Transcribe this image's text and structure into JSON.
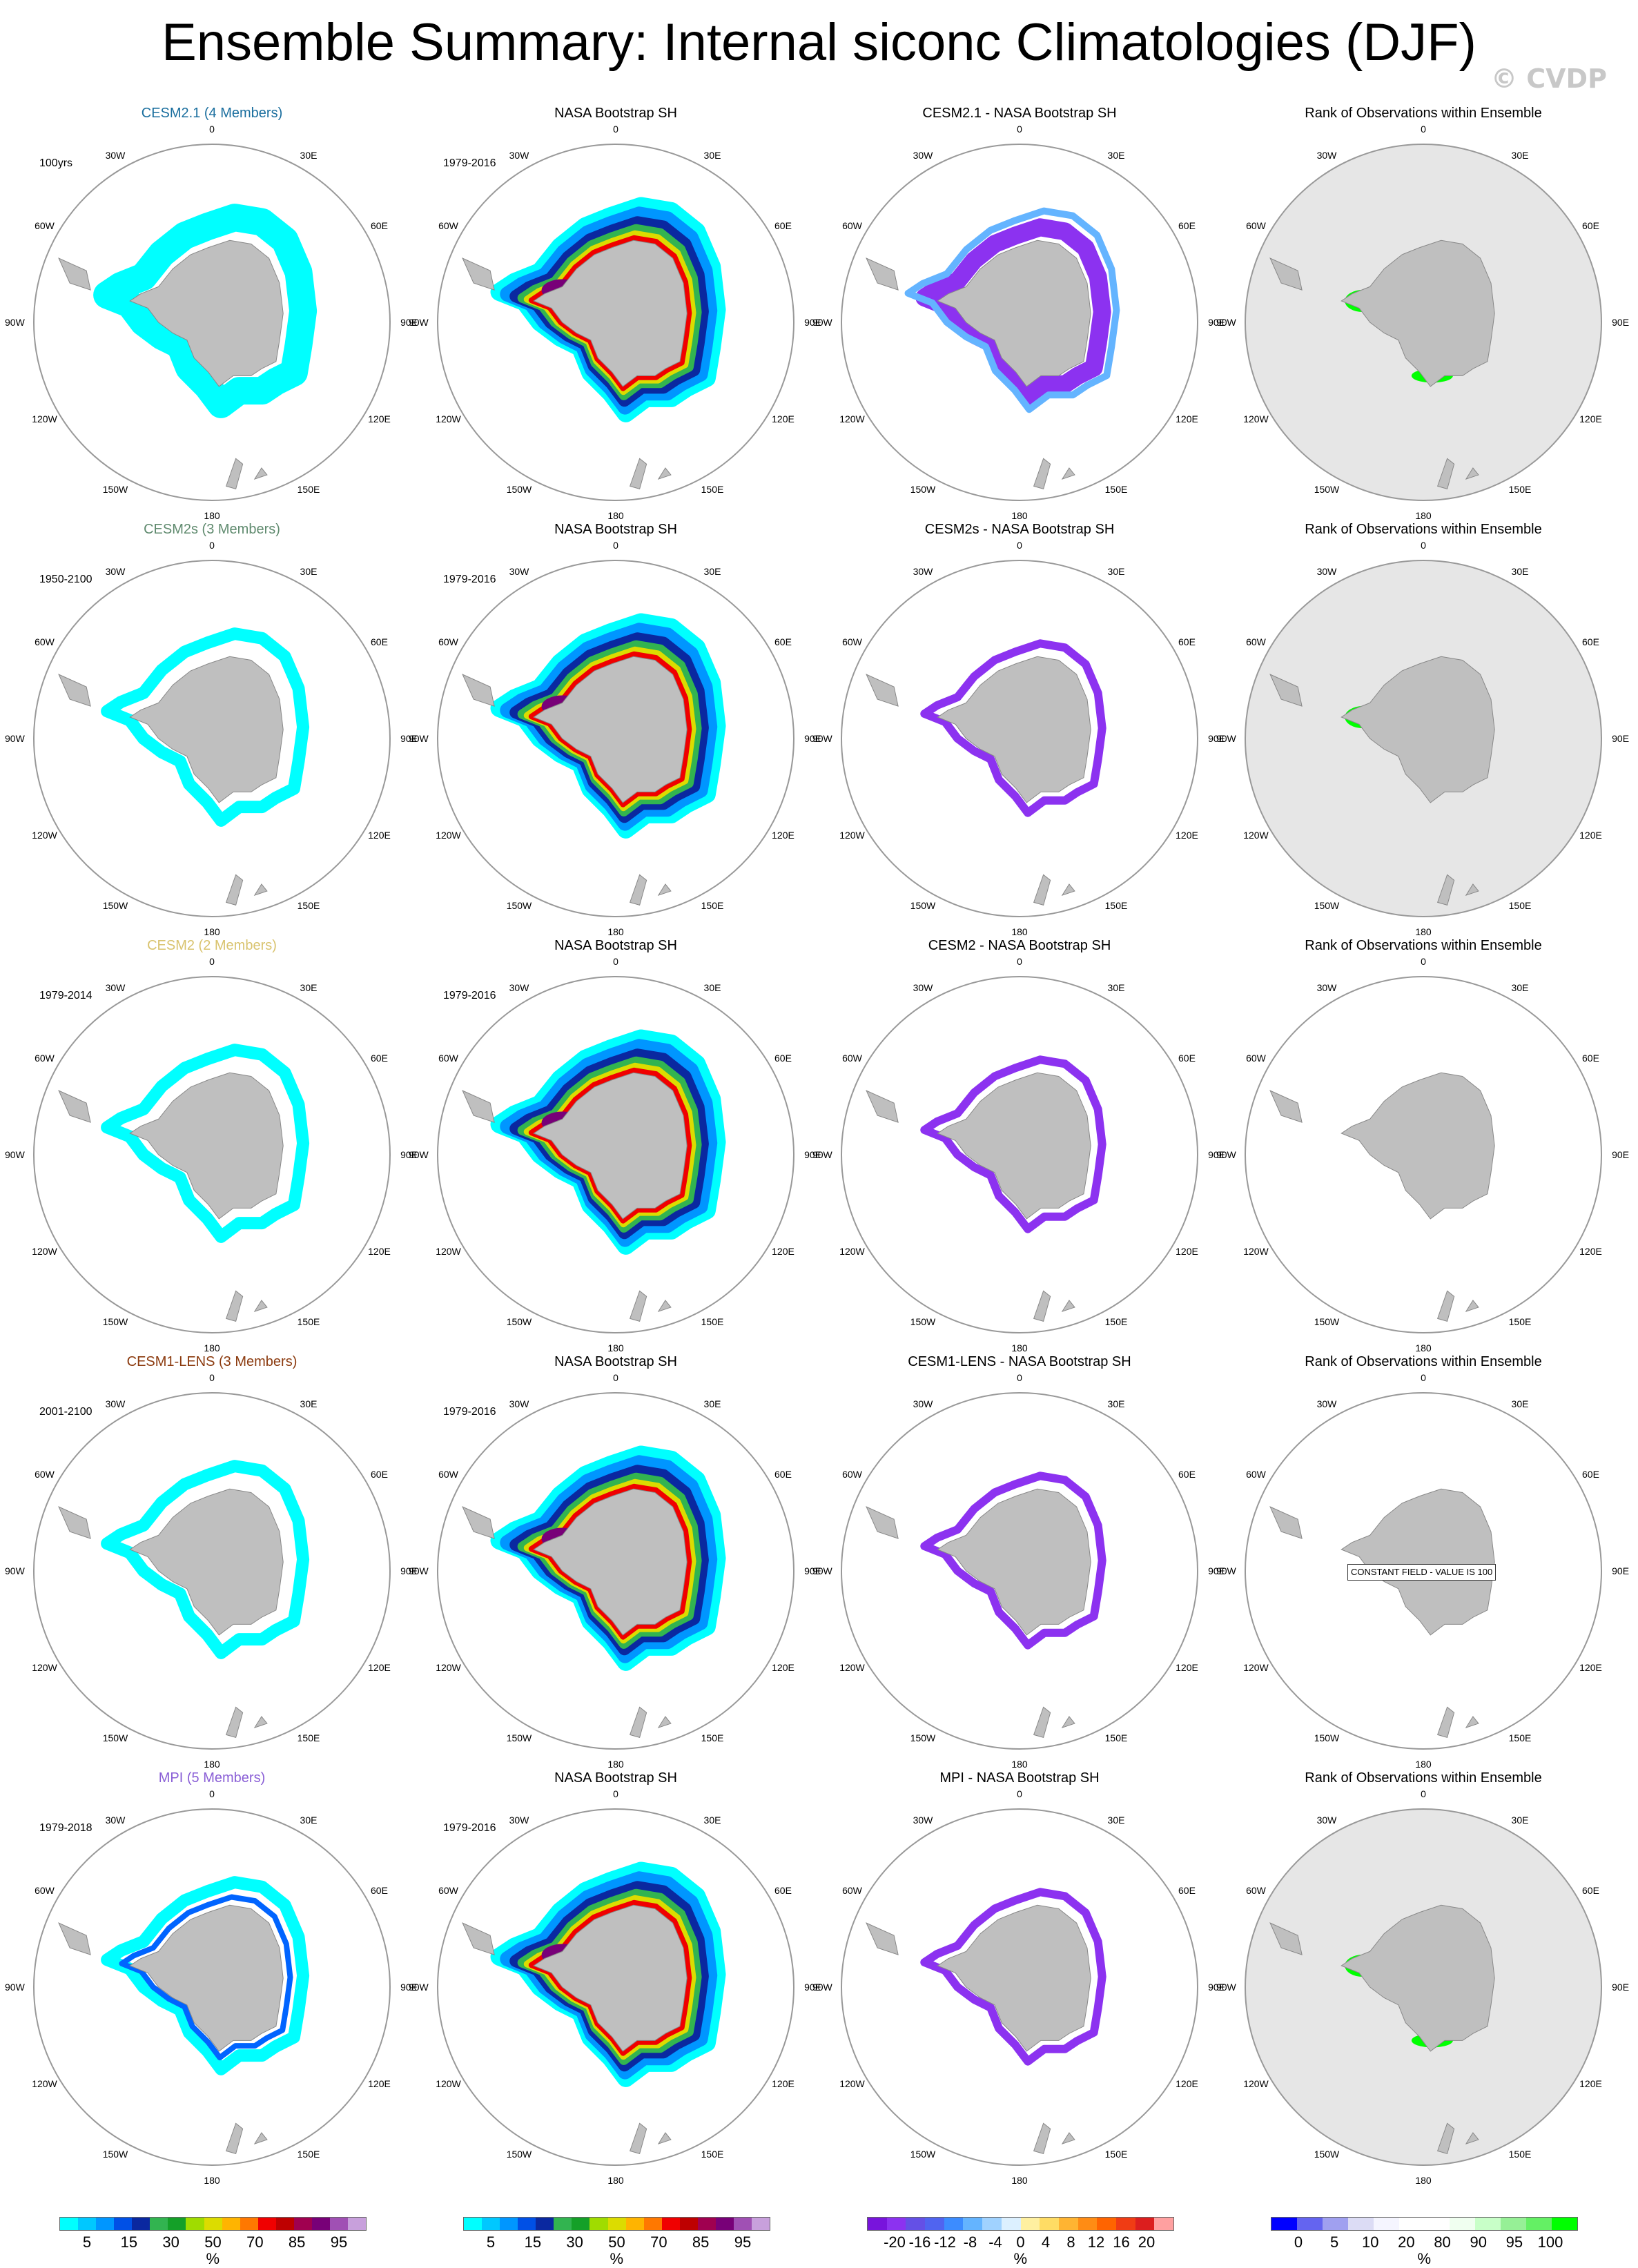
{
  "title": "Ensemble Summary: Internal siconc Climatologies (DJF)",
  "watermark": "© CVDP",
  "map_labels": [
    "0",
    "30E",
    "60E",
    "90E",
    "120E",
    "150E",
    "180",
    "150W",
    "120W",
    "90W",
    "60W",
    "30W"
  ],
  "panel_rows": [
    {
      "model": "CESM2.1 (4 Members)",
      "model_color": "#1a6e9e",
      "model_period": "100yrs",
      "obs": "NASA Bootstrap SH",
      "obs_period": "1979-2016",
      "diff": "CESM2.1 - NASA Bootstrap SH",
      "rank": "Rank of Observations within Ensemble",
      "rank_bg": "#e6e6e6",
      "rank_note": ""
    },
    {
      "model": "CESM2s (3 Members)",
      "model_color": "#5f8a6e",
      "model_period": "1950-2100",
      "obs": "NASA Bootstrap SH",
      "obs_period": "1979-2016",
      "diff": "CESM2s - NASA Bootstrap SH",
      "rank": "Rank of Observations within Ensemble",
      "rank_bg": "#e6e6e6",
      "rank_note": ""
    },
    {
      "model": "CESM2 (2 Members)",
      "model_color": "#d9c36e",
      "model_period": "1979-2014",
      "obs": "NASA Bootstrap SH",
      "obs_period": "1979-2016",
      "diff": "CESM2 - NASA Bootstrap SH",
      "rank": "Rank of Observations within Ensemble",
      "rank_bg": "#ffffff",
      "rank_note": ""
    },
    {
      "model": "CESM1-LENS (3 Members)",
      "model_color": "#8b3a0e",
      "model_period": "2001-2100",
      "obs": "NASA Bootstrap SH",
      "obs_period": "1979-2016",
      "diff": "CESM1-LENS - NASA Bootstrap SH",
      "rank": "Rank of Observations within Ensemble",
      "rank_bg": "#ffffff",
      "rank_note": "CONSTANT FIELD - VALUE IS 100"
    },
    {
      "model": "MPI (5 Members)",
      "model_color": "#8a5fd6",
      "model_period": "1979-2018",
      "obs": "NASA Bootstrap SH",
      "obs_period": "1979-2016",
      "diff": "MPI - NASA Bootstrap SH",
      "rank": "Rank of Observations within Ensemble",
      "rank_bg": "#e6e6e6",
      "rank_note": ""
    }
  ],
  "colorbars": [
    {
      "name": "sea-ice-concentration",
      "unit": "%",
      "ticks": [
        "5",
        "15",
        "30",
        "50",
        "70",
        "85",
        "95"
      ],
      "colors": [
        "#00ffff",
        "#00c8ff",
        "#0096ff",
        "#0050e6",
        "#0a28a0",
        "#32b450",
        "#14a028",
        "#a0dc00",
        "#dcdc00",
        "#ffb400",
        "#ff7800",
        "#f00000",
        "#be0000",
        "#a00050",
        "#780078",
        "#a050b4",
        "#c8a0dc"
      ]
    },
    {
      "name": "sea-ice-concentration-obs",
      "unit": "%",
      "ticks": [
        "5",
        "15",
        "30",
        "50",
        "70",
        "85",
        "95"
      ],
      "colors": [
        "#00ffff",
        "#00c8ff",
        "#0096ff",
        "#0050e6",
        "#0a28a0",
        "#32b450",
        "#14a028",
        "#a0dc00",
        "#dcdc00",
        "#ffb400",
        "#ff7800",
        "#f00000",
        "#be0000",
        "#a00050",
        "#780078",
        "#a050b4",
        "#c8a0dc"
      ]
    },
    {
      "name": "difference",
      "unit": "%",
      "ticks": [
        "-20",
        "-16",
        "-12",
        "-8",
        "-4",
        "0",
        "4",
        "8",
        "12",
        "16",
        "20"
      ],
      "colors": [
        "#7814dc",
        "#8c32f0",
        "#6450e6",
        "#5064f0",
        "#3c8cff",
        "#64b4ff",
        "#a0d2ff",
        "#dcf0ff",
        "#fff0a0",
        "#ffdc64",
        "#ffb432",
        "#ff8c14",
        "#ff6400",
        "#f03c14",
        "#dc1e1e",
        "#ffa0a0"
      ]
    },
    {
      "name": "rank",
      "unit": "%",
      "ticks": [
        "0",
        "5",
        "10",
        "20",
        "80",
        "90",
        "95",
        "100"
      ],
      "colors": [
        "#0000ff",
        "#6464f0",
        "#a0a0f0",
        "#dcdcf5",
        "#f5f5ff",
        "#ffffff",
        "#ffffff",
        "#f0fff0",
        "#c8ffc8",
        "#96f096",
        "#64f064",
        "#00ff00"
      ]
    }
  ],
  "chart_data": {
    "type": "heatmap",
    "title": "Ensemble Summary: Internal siconc Climatologies (DJF)",
    "projection": "south polar stereographic",
    "variable": "siconc",
    "season": "DJF",
    "rows": [
      "CESM2.1 (4 Members)",
      "CESM2s (3 Members)",
      "CESM2 (2 Members)",
      "CESM1-LENS (3 Members)",
      "MPI (5 Members)"
    ],
    "columns": [
      "model",
      "NASA Bootstrap SH",
      "model - NASA Bootstrap SH",
      "Rank of Observations within Ensemble"
    ],
    "colorbar_units": "%"
  }
}
